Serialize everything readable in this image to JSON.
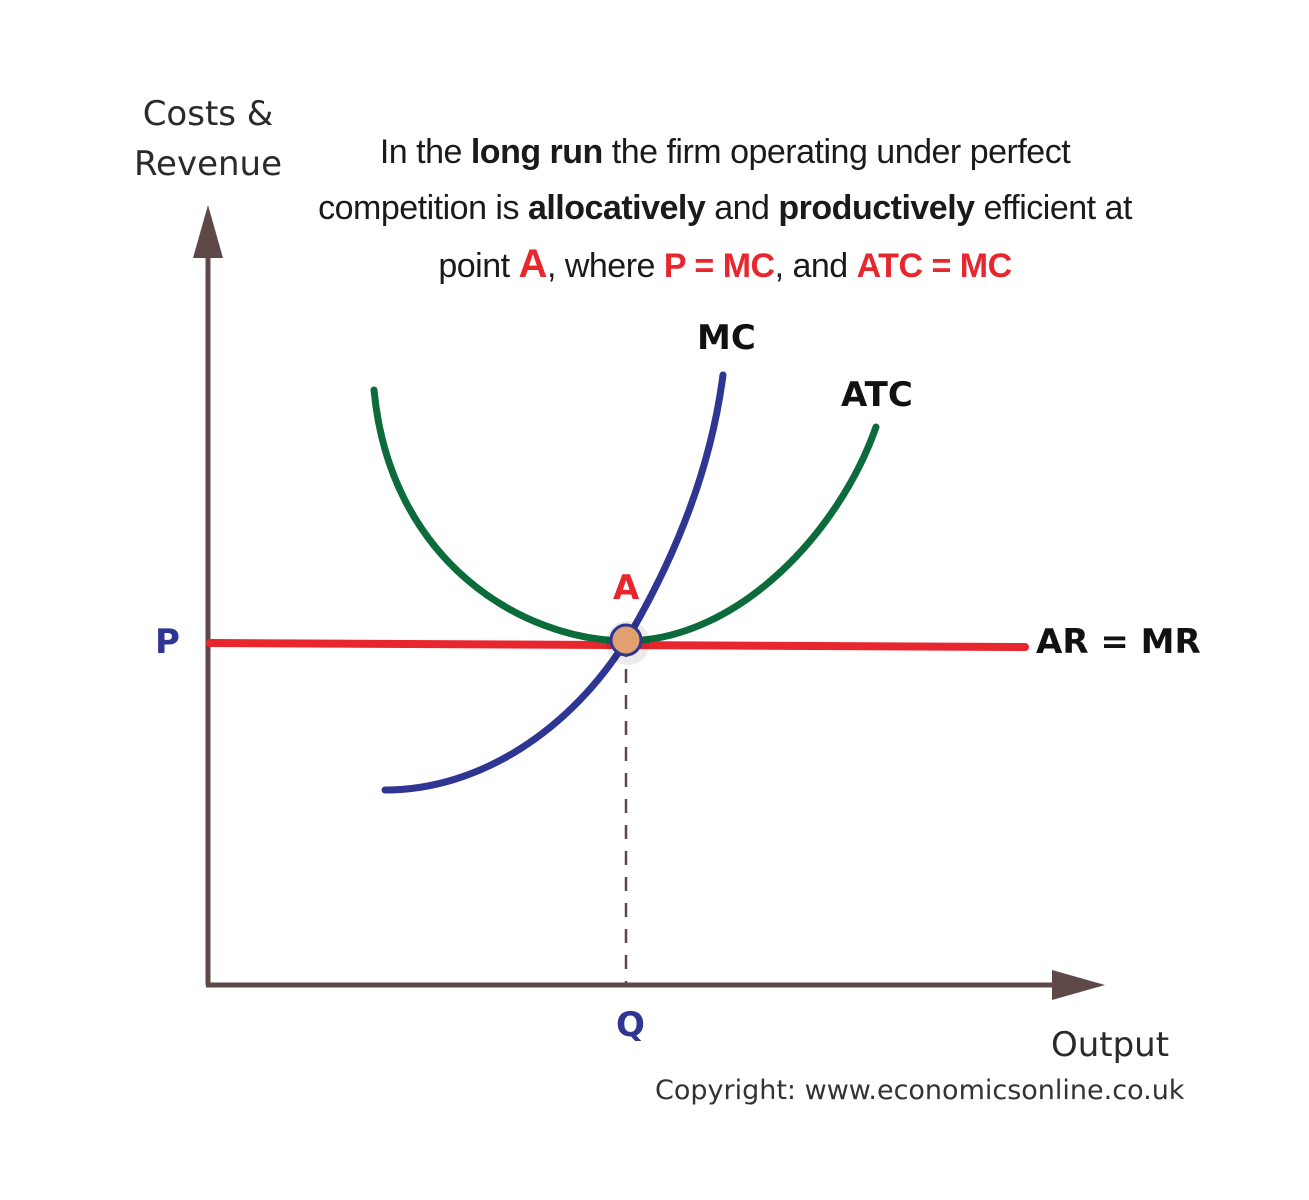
{
  "axes": {
    "y_label_line1": "Costs &",
    "y_label_line2": "Revenue",
    "x_label": "Output",
    "x_tick": "Q",
    "y_tick": "P"
  },
  "caption": {
    "part1": "In the ",
    "bold1": "long run",
    "part2": " the firm operating under perfect competition is ",
    "bold2": "allocatively",
    "part3": " and ",
    "bold3": "productively",
    "part4": " efficient at point ",
    "point": "A",
    "part5": ", where ",
    "eq1": "P = MC",
    "part6": ", and ",
    "eq2": "ATC = MC"
  },
  "curves": {
    "mc_label": "MC",
    "atc_label": "ATC",
    "ar_mr_label": "AR = MR"
  },
  "point_label": "A",
  "copyright": "Copyright: www.economicsonline.co.uk",
  "colors": {
    "axis": "#5e4848",
    "mc": "#2e3592",
    "atc": "#0c6b3a",
    "ar_mr": "#e8262e",
    "point_fill": "#e0a070",
    "point_stroke": "#2e3592",
    "dashed": "#5e4848"
  }
}
